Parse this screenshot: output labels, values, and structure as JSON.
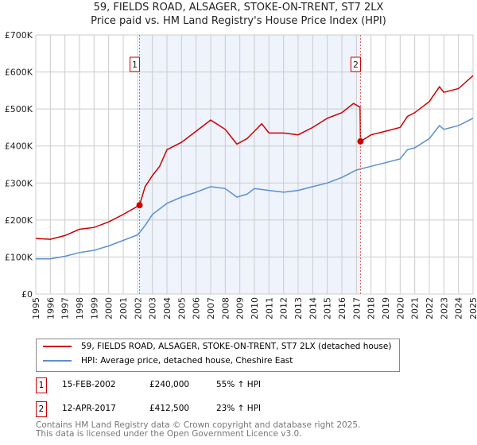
{
  "chart_data": {
    "type": "line",
    "title": "59, FIELDS ROAD, ALSAGER, STOKE-ON-TRENT, ST7 2LX",
    "subtitle": "Price paid vs. HM Land Registry's House Price Index (HPI)",
    "xlim": [
      1995,
      2025
    ],
    "ylim": [
      0,
      700000
    ],
    "yticks": [
      0,
      100000,
      200000,
      300000,
      400000,
      500000,
      600000,
      700000
    ],
    "ytick_labels": [
      "£0",
      "£100K",
      "£200K",
      "£300K",
      "£400K",
      "£500K",
      "£600K",
      "£700K"
    ],
    "xticks": [
      1995,
      1996,
      1997,
      1998,
      1999,
      2000,
      2001,
      2002,
      2003,
      2004,
      2005,
      2006,
      2007,
      2008,
      2009,
      2010,
      2011,
      2012,
      2013,
      2014,
      2015,
      2016,
      2017,
      2018,
      2019,
      2020,
      2021,
      2022,
      2023,
      2024,
      2025
    ],
    "grid": true,
    "series": [
      {
        "name": "59, FIELDS ROAD, ALSAGER, STOKE-ON-TRENT, ST7 2LX (detached house)",
        "color": "#cc0000",
        "x": [
          1995,
          1996,
          1997,
          1998,
          1999,
          2000,
          2001,
          2002.12,
          2002.5,
          2003,
          2003.5,
          2004,
          2005,
          2006,
          2007,
          2008,
          2008.8,
          2009.5,
          2010,
          2010.5,
          2011,
          2012,
          2013,
          2014,
          2015,
          2016,
          2016.8,
          2017.25,
          2017.28,
          2018,
          2019,
          2020,
          2020.5,
          2021,
          2022,
          2022.7,
          2023,
          2024,
          2025
        ],
        "y": [
          150000,
          148000,
          158000,
          175000,
          180000,
          195000,
          215000,
          240000,
          290000,
          320000,
          345000,
          390000,
          410000,
          440000,
          470000,
          445000,
          405000,
          420000,
          440000,
          460000,
          435000,
          435000,
          430000,
          450000,
          475000,
          490000,
          515000,
          505000,
          412500,
          430000,
          440000,
          450000,
          480000,
          490000,
          520000,
          560000,
          545000,
          555000,
          590000
        ]
      },
      {
        "name": "HPI: Average price, detached house, Cheshire East",
        "color": "#5b8fd0",
        "x": [
          1995,
          1996,
          1997,
          1998,
          1999,
          2000,
          2001,
          2002,
          2002.5,
          2003,
          2004,
          2005,
          2006,
          2007,
          2008,
          2008.8,
          2009.5,
          2010,
          2011,
          2012,
          2013,
          2014,
          2015,
          2016,
          2017,
          2018,
          2019,
          2020,
          2020.5,
          2021,
          2022,
          2022.7,
          2023,
          2024,
          2025
        ],
        "y": [
          95000,
          95000,
          102000,
          112000,
          118000,
          130000,
          145000,
          160000,
          185000,
          215000,
          245000,
          262000,
          275000,
          290000,
          285000,
          262000,
          270000,
          285000,
          280000,
          275000,
          280000,
          290000,
          300000,
          315000,
          335000,
          345000,
          355000,
          365000,
          390000,
          395000,
          420000,
          455000,
          445000,
          455000,
          475000
        ]
      }
    ],
    "annotations": [
      {
        "label": "1",
        "x": 2002.12,
        "y": 240000
      },
      {
        "label": "2",
        "x": 2017.28,
        "y": 412500
      }
    ],
    "shaded_range": [
      2002.12,
      2017.28
    ]
  },
  "legend": [
    "59, FIELDS ROAD, ALSAGER, STOKE-ON-TRENT, ST7 2LX (detached house)",
    "HPI: Average price, detached house, Cheshire East"
  ],
  "transactions": [
    {
      "num": "1",
      "date": "15-FEB-2002",
      "price": "£240,000",
      "hpi": "55% ↑ HPI"
    },
    {
      "num": "2",
      "date": "12-APR-2017",
      "price": "£412,500",
      "hpi": "23% ↑ HPI"
    }
  ],
  "footer": [
    "Contains HM Land Registry data © Crown copyright and database right 2025.",
    "This data is licensed under the Open Government Licence v3.0."
  ]
}
